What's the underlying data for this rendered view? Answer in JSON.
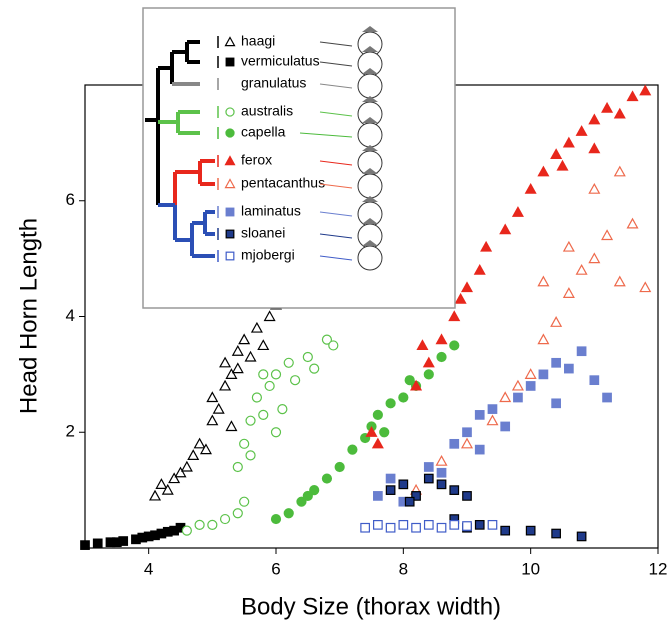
{
  "chart_data": {
    "type": "scatter",
    "xlabel": "Body Size (thorax width)",
    "ylabel": "Head Horn Length",
    "xlim": [
      3,
      12
    ],
    "ylim": [
      0,
      8
    ],
    "xticks": [
      4,
      6,
      8,
      10,
      12
    ],
    "yticks": [
      2,
      4,
      6
    ],
    "series": [
      {
        "name": "haagi",
        "color": "#000000",
        "marker": "triangle",
        "filled": false,
        "x": [
          4.1,
          4.2,
          4.3,
          4.4,
          4.5,
          4.6,
          4.7,
          4.8,
          4.9,
          5.0,
          5.0,
          5.1,
          5.2,
          5.2,
          5.3,
          5.4,
          5.4,
          5.5,
          5.6,
          5.7,
          5.8,
          5.9,
          6.0,
          5.3
        ],
        "values": [
          0.9,
          1.1,
          1.0,
          1.2,
          1.3,
          1.4,
          1.6,
          1.8,
          1.7,
          2.2,
          2.6,
          2.4,
          2.8,
          3.2,
          3.0,
          3.4,
          3.1,
          3.6,
          3.3,
          3.8,
          3.5,
          4.0,
          4.2,
          2.1
        ]
      },
      {
        "name": "vermiculatus",
        "color": "#000000",
        "marker": "square",
        "filled": true,
        "x": [
          3.0,
          3.2,
          3.4,
          3.6,
          3.8,
          4.0,
          4.1,
          4.2,
          4.3,
          4.4,
          4.5,
          3.5,
          3.9
        ],
        "values": [
          0.05,
          0.08,
          0.1,
          0.12,
          0.15,
          0.2,
          0.22,
          0.25,
          0.28,
          0.3,
          0.35,
          0.1,
          0.18
        ]
      },
      {
        "name": "granulatus",
        "color": "#888888",
        "marker": "none",
        "filled": false,
        "x": [],
        "values": []
      },
      {
        "name": "australis",
        "color": "#5cc24a",
        "marker": "circle",
        "filled": false,
        "x": [
          4.6,
          4.8,
          5.0,
          5.2,
          5.4,
          5.5,
          5.4,
          5.5,
          5.6,
          5.6,
          5.7,
          5.8,
          5.9,
          6.0,
          6.1,
          6.2,
          6.3,
          6.5,
          6.6,
          6.8,
          6.9,
          6.0,
          5.8
        ],
        "values": [
          0.3,
          0.4,
          0.4,
          0.5,
          0.6,
          0.8,
          1.4,
          1.8,
          2.2,
          1.6,
          2.6,
          2.3,
          2.8,
          3.0,
          2.4,
          3.2,
          2.9,
          3.3,
          3.1,
          3.6,
          3.5,
          2.0,
          3.0
        ]
      },
      {
        "name": "capella",
        "color": "#4cbb3c",
        "marker": "circle",
        "filled": true,
        "x": [
          6.2,
          6.4,
          6.5,
          6.8,
          7.0,
          7.2,
          7.4,
          7.5,
          7.6,
          7.8,
          8.0,
          8.2,
          8.4,
          8.6,
          8.8,
          7.7,
          8.1,
          6.0,
          6.6
        ],
        "values": [
          0.6,
          0.8,
          0.9,
          1.2,
          1.4,
          1.7,
          1.9,
          2.1,
          2.3,
          2.5,
          2.6,
          2.8,
          3.0,
          3.3,
          3.5,
          2.0,
          2.9,
          0.5,
          1.0
        ]
      },
      {
        "name": "ferox",
        "color": "#e8271c",
        "marker": "triangle",
        "filled": true,
        "x": [
          7.5,
          7.6,
          8.2,
          8.4,
          8.6,
          8.8,
          9.0,
          9.2,
          9.3,
          9.6,
          9.8,
          10.0,
          10.2,
          10.4,
          10.6,
          10.8,
          11.0,
          11.2,
          11.4,
          11.6,
          11.8,
          8.3,
          8.9,
          10.5,
          11.0
        ],
        "values": [
          2.0,
          1.8,
          2.8,
          3.2,
          3.6,
          4.0,
          4.5,
          4.8,
          5.2,
          5.5,
          5.8,
          6.2,
          6.5,
          6.8,
          7.0,
          7.2,
          7.4,
          7.6,
          7.5,
          7.8,
          7.9,
          3.5,
          4.3,
          6.6,
          6.9
        ]
      },
      {
        "name": "pentacanthus",
        "color": "#ee6a4c",
        "marker": "triangle",
        "filled": false,
        "x": [
          8.2,
          8.6,
          9.0,
          9.4,
          9.6,
          9.8,
          10.0,
          10.2,
          10.4,
          10.6,
          10.8,
          11.0,
          11.2,
          11.4,
          11.6,
          11.8,
          10.6,
          11.0,
          11.4,
          10.2
        ],
        "values": [
          1.0,
          1.5,
          1.8,
          2.2,
          2.6,
          2.8,
          3.0,
          3.6,
          3.9,
          4.4,
          4.8,
          5.0,
          5.4,
          4.6,
          5.6,
          4.5,
          5.2,
          6.2,
          6.5,
          4.6
        ]
      },
      {
        "name": "laminatus",
        "color": "#6a7fcf",
        "marker": "square",
        "filled": true,
        "x": [
          7.6,
          7.8,
          8.0,
          8.4,
          8.6,
          8.8,
          9.0,
          9.2,
          9.4,
          9.6,
          9.8,
          10.0,
          10.2,
          10.4,
          10.6,
          10.8,
          11.0,
          11.2,
          10.4,
          9.2
        ],
        "values": [
          0.9,
          1.2,
          0.8,
          1.4,
          1.3,
          1.8,
          2.0,
          1.7,
          2.4,
          2.1,
          2.6,
          2.8,
          3.0,
          3.2,
          3.1,
          3.4,
          2.9,
          2.6,
          2.5,
          2.3
        ]
      },
      {
        "name": "sloanei",
        "color": "#1f3a8a",
        "marker": "square",
        "filled": true,
        "x": [
          7.8,
          8.0,
          8.2,
          8.4,
          8.6,
          8.8,
          9.0,
          8.1,
          8.8,
          9.2,
          9.6,
          10.0,
          10.4,
          10.8,
          9.0
        ],
        "values": [
          1.0,
          1.1,
          0.9,
          1.2,
          1.1,
          1.0,
          0.9,
          0.8,
          0.5,
          0.4,
          0.3,
          0.3,
          0.25,
          0.2,
          0.35
        ]
      },
      {
        "name": "mjobergi",
        "color": "#3f5cc8",
        "marker": "square",
        "filled": false,
        "x": [
          7.4,
          7.6,
          7.8,
          8.0,
          8.2,
          8.4,
          8.6,
          8.8,
          9.0,
          9.4
        ],
        "values": [
          0.35,
          0.4,
          0.35,
          0.4,
          0.35,
          0.4,
          0.35,
          0.4,
          0.38,
          0.4
        ]
      }
    ]
  }
}
